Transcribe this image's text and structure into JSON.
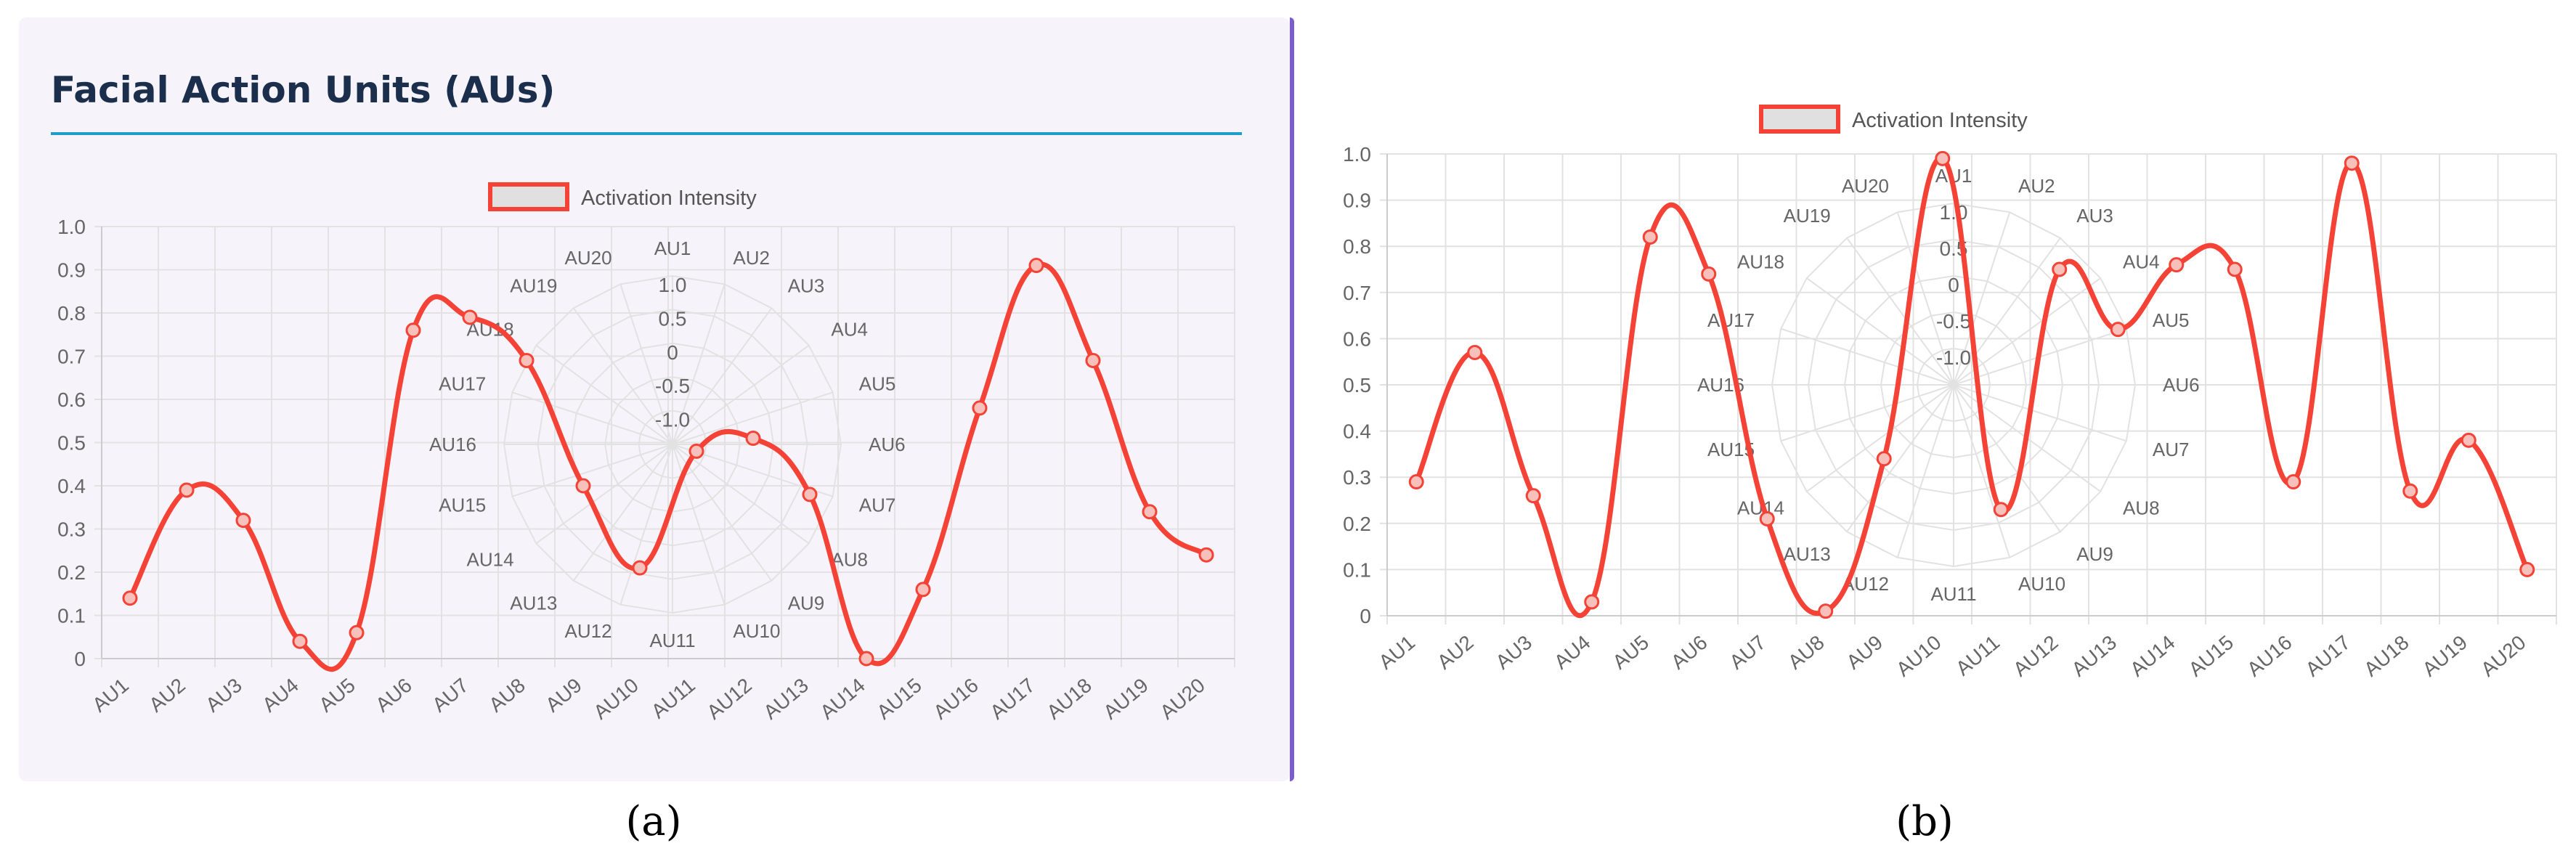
{
  "panel_a": {
    "title": "Facial Action Units (AUs)",
    "caption": "(a)"
  },
  "panel_b": {
    "caption": "(b)"
  },
  "colors": {
    "line": "#f44336",
    "legend_fill": "#e0e0e0",
    "grid": "#e2e2e2",
    "title": "#1b2e4b",
    "rule": "#1e9ec9",
    "card_border": "#7a5fc8"
  },
  "chart_data": [
    {
      "type": "line",
      "legend": [
        "Activation Intensity"
      ],
      "legend_position": "top-center",
      "grid": true,
      "curve": "smooth",
      "categories": [
        "AU1",
        "AU2",
        "AU3",
        "AU4",
        "AU5",
        "AU6",
        "AU7",
        "AU8",
        "AU9",
        "AU10",
        "AU11",
        "AU12",
        "AU13",
        "AU14",
        "AU15",
        "AU16",
        "AU17",
        "AU18",
        "AU19",
        "AU20"
      ],
      "series": [
        {
          "name": "Activation Intensity",
          "values": [
            0.14,
            0.39,
            0.32,
            0.04,
            0.06,
            0.76,
            0.79,
            0.69,
            0.4,
            0.21,
            0.48,
            0.51,
            0.38,
            0.0,
            0.16,
            0.58,
            0.91,
            0.69,
            0.34,
            0.24
          ]
        }
      ],
      "ylim": [
        0,
        1
      ],
      "yticks": [
        0,
        0.1,
        0.2,
        0.3,
        0.4,
        0.5,
        0.6,
        0.7,
        0.8,
        0.9,
        1.0
      ],
      "ytick_labels": [
        "0",
        "0.1",
        "0.2",
        "0.3",
        "0.4",
        "0.5",
        "0.6",
        "0.7",
        "0.8",
        "0.9",
        "1.0"
      ],
      "radar_overlay": {
        "ticks": [
          "1.0",
          "0.5",
          "0",
          "-0.5",
          "-1.0"
        ],
        "point_labels": [
          "AU1",
          "AU2",
          "AU3",
          "AU4",
          "AU5",
          "AU6",
          "AU7",
          "AU8",
          "AU9",
          "AU10",
          "AU11",
          "AU12",
          "AU13",
          "AU14",
          "AU15",
          "AU16",
          "AU17",
          "AU18",
          "AU19",
          "AU20"
        ]
      }
    },
    {
      "type": "line",
      "legend": [
        "Activation Intensity"
      ],
      "legend_position": "top-center",
      "grid": true,
      "curve": "smooth",
      "categories": [
        "AU1",
        "AU2",
        "AU3",
        "AU4",
        "AU5",
        "AU6",
        "AU7",
        "AU8",
        "AU9",
        "AU10",
        "AU11",
        "AU12",
        "AU13",
        "AU14",
        "AU15",
        "AU16",
        "AU17",
        "AU18",
        "AU19",
        "AU20"
      ],
      "series": [
        {
          "name": "Activation Intensity",
          "values": [
            0.29,
            0.57,
            0.26,
            0.03,
            0.82,
            0.74,
            0.21,
            0.01,
            0.34,
            0.99,
            0.23,
            0.75,
            0.62,
            0.76,
            0.75,
            0.29,
            0.98,
            0.27,
            0.38,
            0.1
          ]
        }
      ],
      "ylim": [
        0,
        1
      ],
      "yticks": [
        0,
        0.1,
        0.2,
        0.3,
        0.4,
        0.5,
        0.6,
        0.7,
        0.8,
        0.9,
        1.0
      ],
      "ytick_labels": [
        "0",
        "0.1",
        "0.2",
        "0.3",
        "0.4",
        "0.5",
        "0.6",
        "0.7",
        "0.8",
        "0.9",
        "1.0"
      ],
      "radar_overlay": {
        "ticks": [
          "1.0",
          "0.5",
          "0",
          "-0.5",
          "-1.0"
        ],
        "point_labels": [
          "AU1",
          "AU2",
          "AU3",
          "AU4",
          "AU5",
          "AU6",
          "AU7",
          "AU8",
          "AU9",
          "AU10",
          "AU11",
          "AU12",
          "AU13",
          "AU14",
          "AU15",
          "AU16",
          "AU17",
          "AU18",
          "AU19",
          "AU20"
        ]
      }
    }
  ]
}
